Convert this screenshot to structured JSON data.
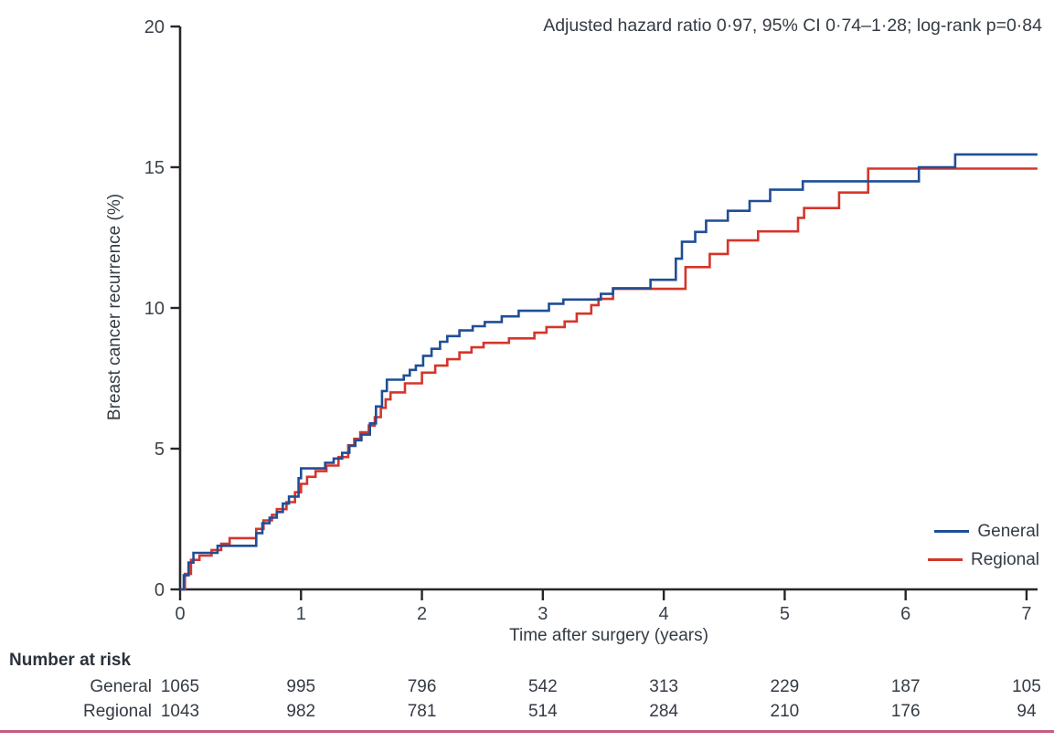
{
  "annotation": "Adjusted hazard ratio 0·97, 95% CI 0·74–1·28; log-rank p=0·84",
  "colors": {
    "general_line": "#1f4e96",
    "regional_line": "#d5352b",
    "axis": "#26262b",
    "text": "#343b44",
    "bottom_rule": "#c75c80"
  },
  "chart_data": {
    "type": "line",
    "subtype": "kaplan-meier-step",
    "title": "",
    "xlabel": "Time after surgery (years)",
    "ylabel": "Breast cancer recurrence (%)",
    "xlim": [
      0,
      7
    ],
    "ylim": [
      0,
      20
    ],
    "x_ticks": [
      0,
      1,
      2,
      3,
      4,
      5,
      6,
      7
    ],
    "y_ticks": [
      0,
      5,
      10,
      15,
      20
    ],
    "grid": false,
    "legend_position": "lower right",
    "annotation": "Adjusted hazard ratio 0·97, 95% CI 0·74–1·28; log-rank p=0·84",
    "series": [
      {
        "name": "General",
        "color": "#1f4e96",
        "points_year_pct": [
          [
            0,
            0
          ],
          [
            0.03,
            0.5
          ],
          [
            0.07,
            0.95
          ],
          [
            0.11,
            1.3
          ],
          [
            0.31,
            1.55
          ],
          [
            0.63,
            2.0
          ],
          [
            0.68,
            2.35
          ],
          [
            0.74,
            2.55
          ],
          [
            0.8,
            2.75
          ],
          [
            0.85,
            3.05
          ],
          [
            0.9,
            3.3
          ],
          [
            0.98,
            3.95
          ],
          [
            1.0,
            4.3
          ],
          [
            1.2,
            4.5
          ],
          [
            1.27,
            4.65
          ],
          [
            1.34,
            4.85
          ],
          [
            1.4,
            5.1
          ],
          [
            1.45,
            5.3
          ],
          [
            1.5,
            5.5
          ],
          [
            1.57,
            5.9
          ],
          [
            1.62,
            6.5
          ],
          [
            1.67,
            7.05
          ],
          [
            1.71,
            7.45
          ],
          [
            1.85,
            7.6
          ],
          [
            1.9,
            7.8
          ],
          [
            1.95,
            7.95
          ],
          [
            2.01,
            8.3
          ],
          [
            2.08,
            8.55
          ],
          [
            2.15,
            8.8
          ],
          [
            2.21,
            9.0
          ],
          [
            2.31,
            9.2
          ],
          [
            2.42,
            9.35
          ],
          [
            2.52,
            9.5
          ],
          [
            2.66,
            9.7
          ],
          [
            2.8,
            9.9
          ],
          [
            3.05,
            10.15
          ],
          [
            3.17,
            10.3
          ],
          [
            3.48,
            10.5
          ],
          [
            3.58,
            10.7
          ],
          [
            3.89,
            11.0
          ],
          [
            4.1,
            11.75
          ],
          [
            4.15,
            12.35
          ],
          [
            4.26,
            12.7
          ],
          [
            4.35,
            13.1
          ],
          [
            4.53,
            13.45
          ],
          [
            4.71,
            13.8
          ],
          [
            4.88,
            14.2
          ],
          [
            5.15,
            14.5
          ],
          [
            6.11,
            15.0
          ],
          [
            6.41,
            15.45
          ],
          [
            7.09,
            15.45
          ]
        ]
      },
      {
        "name": "Regional",
        "color": "#d5352b",
        "points_year_pct": [
          [
            0,
            0
          ],
          [
            0.04,
            0.55
          ],
          [
            0.09,
            1.05
          ],
          [
            0.16,
            1.2
          ],
          [
            0.26,
            1.4
          ],
          [
            0.34,
            1.62
          ],
          [
            0.41,
            1.82
          ],
          [
            0.63,
            2.15
          ],
          [
            0.69,
            2.45
          ],
          [
            0.76,
            2.65
          ],
          [
            0.8,
            2.85
          ],
          [
            0.88,
            3.1
          ],
          [
            0.95,
            3.45
          ],
          [
            1.0,
            3.75
          ],
          [
            1.05,
            4.0
          ],
          [
            1.12,
            4.2
          ],
          [
            1.21,
            4.4
          ],
          [
            1.31,
            4.7
          ],
          [
            1.39,
            5.12
          ],
          [
            1.44,
            5.35
          ],
          [
            1.49,
            5.58
          ],
          [
            1.56,
            5.82
          ],
          [
            1.61,
            6.12
          ],
          [
            1.66,
            6.45
          ],
          [
            1.7,
            6.75
          ],
          [
            1.74,
            7.0
          ],
          [
            1.86,
            7.32
          ],
          [
            2.0,
            7.7
          ],
          [
            2.11,
            7.95
          ],
          [
            2.21,
            8.18
          ],
          [
            2.31,
            8.42
          ],
          [
            2.41,
            8.6
          ],
          [
            2.51,
            8.76
          ],
          [
            2.72,
            8.92
          ],
          [
            2.93,
            9.12
          ],
          [
            3.03,
            9.32
          ],
          [
            3.18,
            9.52
          ],
          [
            3.28,
            9.8
          ],
          [
            3.4,
            10.1
          ],
          [
            3.46,
            10.32
          ],
          [
            3.58,
            10.68
          ],
          [
            4.18,
            11.45
          ],
          [
            4.38,
            11.92
          ],
          [
            4.53,
            12.4
          ],
          [
            4.78,
            12.72
          ],
          [
            5.11,
            13.2
          ],
          [
            5.16,
            13.55
          ],
          [
            5.45,
            14.1
          ],
          [
            5.69,
            14.95
          ],
          [
            7.09,
            14.95
          ]
        ]
      }
    ],
    "number_at_risk": {
      "title": "Number at risk",
      "times": [
        0,
        1,
        2,
        3,
        4,
        5,
        6,
        7
      ],
      "rows": [
        {
          "label": "General",
          "counts": [
            "1065",
            "995",
            "796",
            "542",
            "313",
            "229",
            "187",
            "105"
          ]
        },
        {
          "label": "Regional",
          "counts": [
            "1043",
            "982",
            "781",
            "514",
            "284",
            "210",
            "176",
            "94"
          ]
        }
      ]
    }
  }
}
